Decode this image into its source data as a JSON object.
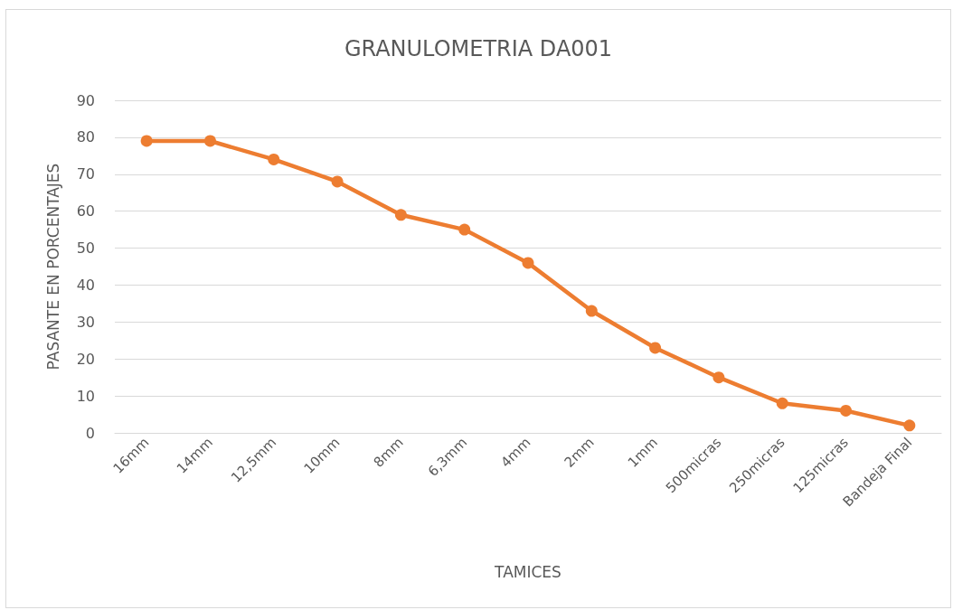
{
  "chart_data": {
    "type": "line",
    "title": "GRANULOMETRIA DA001",
    "xlabel": "TAMICES",
    "ylabel": "PASANTE EN PORCENTAJES",
    "categories": [
      "16mm",
      "14mm",
      "12,5mm",
      "10mm",
      "8mm",
      "6,3mm",
      "4mm",
      "2mm",
      "1mm",
      "500micras",
      "250micras",
      "125micras",
      "Bandeja Final"
    ],
    "series": [
      {
        "color": "#ed7d31",
        "values": [
          79,
          79,
          74,
          68,
          59,
          55,
          46,
          33,
          23,
          15,
          8,
          6,
          2
        ]
      }
    ],
    "ylim": [
      0,
      90
    ],
    "yticks": [
      0,
      10,
      20,
      30,
      40,
      50,
      60,
      70,
      80,
      90
    ],
    "grid": "y",
    "marker": "circle",
    "line_style": "solid"
  }
}
